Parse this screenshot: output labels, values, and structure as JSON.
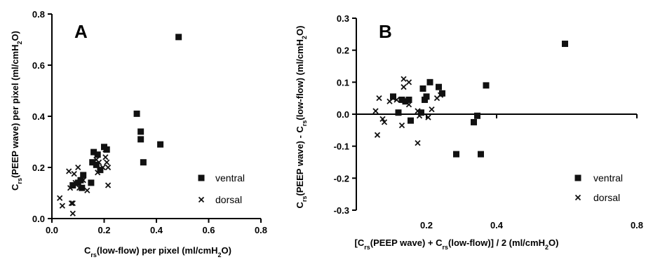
{
  "chart_data": [
    {
      "type": "scatter",
      "panel_label": "A",
      "xlabel": "Crs(low-flow) per pixel (ml/cmH2O)",
      "ylabel": "Crs(PEEP wave) per pixel (ml/cmH2O)",
      "xlim": [
        0,
        0.8
      ],
      "ylim": [
        0,
        0.8
      ],
      "xticks": [
        "0.0",
        "0.2",
        "0.4",
        "0.6",
        "0.8"
      ],
      "yticks": [
        "0.0",
        "0.2",
        "0.4",
        "0.6",
        "0.8"
      ],
      "grid": false,
      "legend_position": "right",
      "series": [
        {
          "name": "ventral",
          "marker": "square",
          "points": [
            [
              0.08,
              0.13
            ],
            [
              0.1,
              0.14
            ],
            [
              0.11,
              0.15
            ],
            [
              0.115,
              0.12
            ],
            [
              0.12,
              0.17
            ],
            [
              0.15,
              0.14
            ],
            [
              0.155,
              0.22
            ],
            [
              0.16,
              0.26
            ],
            [
              0.17,
              0.21
            ],
            [
              0.175,
              0.25
            ],
            [
              0.185,
              0.19
            ],
            [
              0.2,
              0.28
            ],
            [
              0.21,
              0.27
            ],
            [
              0.325,
              0.41
            ],
            [
              0.34,
              0.31
            ],
            [
              0.34,
              0.34
            ],
            [
              0.35,
              0.22
            ],
            [
              0.415,
              0.29
            ],
            [
              0.485,
              0.71
            ]
          ]
        },
        {
          "name": "dorsal",
          "marker": "x",
          "points": [
            [
              0.03,
              0.08
            ],
            [
              0.04,
              0.05
            ],
            [
              0.065,
              0.185
            ],
            [
              0.07,
              0.12
            ],
            [
              0.075,
              0.06
            ],
            [
              0.08,
              0.06
            ],
            [
              0.08,
              0.02
            ],
            [
              0.085,
              0.175
            ],
            [
              0.09,
              0.14
            ],
            [
              0.1,
              0.2
            ],
            [
              0.105,
              0.12
            ],
            [
              0.12,
              0.15
            ],
            [
              0.135,
              0.11
            ],
            [
              0.17,
              0.23
            ],
            [
              0.175,
              0.18
            ],
            [
              0.18,
              0.22
            ],
            [
              0.195,
              0.2
            ],
            [
              0.205,
              0.24
            ],
            [
              0.205,
              0.27
            ],
            [
              0.21,
              0.22
            ],
            [
              0.215,
              0.13
            ],
            [
              0.215,
              0.2
            ]
          ]
        }
      ]
    },
    {
      "type": "scatter",
      "panel_label": "B",
      "xlabel": "[Crs(PEEP wave) + Crs(low-flow)] / 2 (ml/cmH2O)",
      "ylabel": "Crs(PEEP wave) - Crs(low-flow) (ml/cmH2O)",
      "xlim": [
        0,
        0.8
      ],
      "ylim": [
        -0.3,
        0.3
      ],
      "xticks": [
        "0.2",
        "0.4",
        "0.8"
      ],
      "yticks": [
        "0.3",
        "0.2",
        "0.1",
        "0.0",
        "-0.1",
        "-0.2",
        "-0.3"
      ],
      "grid": false,
      "legend_position": "bottom-right",
      "series": [
        {
          "name": "ventral",
          "marker": "square",
          "points": [
            [
              0.105,
              0.055
            ],
            [
              0.12,
              0.005
            ],
            [
              0.13,
              0.045
            ],
            [
              0.14,
              0.04
            ],
            [
              0.15,
              0.045
            ],
            [
              0.155,
              -0.02
            ],
            [
              0.185,
              0.005
            ],
            [
              0.19,
              0.08
            ],
            [
              0.195,
              0.045
            ],
            [
              0.2,
              0.055
            ],
            [
              0.21,
              0.1
            ],
            [
              0.235,
              0.085
            ],
            [
              0.245,
              0.065
            ],
            [
              0.285,
              -0.125
            ],
            [
              0.335,
              -0.025
            ],
            [
              0.345,
              -0.005
            ],
            [
              0.355,
              -0.125
            ],
            [
              0.37,
              0.09
            ],
            [
              0.595,
              0.22
            ]
          ]
        },
        {
          "name": "dorsal",
          "marker": "x",
          "points": [
            [
              0.055,
              0.01
            ],
            [
              0.06,
              -0.065
            ],
            [
              0.065,
              0.05
            ],
            [
              0.075,
              -0.015
            ],
            [
              0.08,
              -0.025
            ],
            [
              0.095,
              0.04
            ],
            [
              0.105,
              0.05
            ],
            [
              0.115,
              0.045
            ],
            [
              0.13,
              -0.035
            ],
            [
              0.135,
              0.11
            ],
            [
              0.135,
              0.085
            ],
            [
              0.14,
              0.04
            ],
            [
              0.15,
              0.1
            ],
            [
              0.15,
              0.03
            ],
            [
              0.175,
              -0.09
            ],
            [
              0.175,
              0.01
            ],
            [
              0.18,
              -0.005
            ],
            [
              0.205,
              -0.01
            ],
            [
              0.215,
              0.015
            ],
            [
              0.23,
              0.05
            ],
            [
              0.24,
              0.06
            ]
          ]
        }
      ]
    }
  ]
}
